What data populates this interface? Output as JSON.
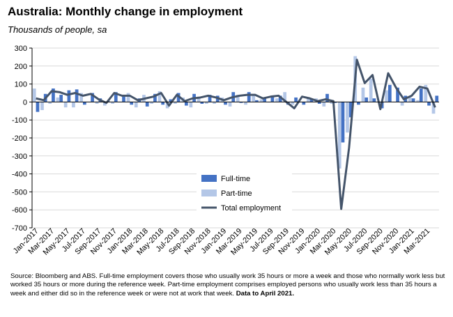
{
  "chart_data": {
    "type": "bar",
    "title": "Australia: Monthly change in employment",
    "subtitle": "Thousands of people, sa",
    "ylim": [
      -700,
      300
    ],
    "yticks": [
      300,
      200,
      100,
      0,
      -100,
      -200,
      -300,
      -400,
      -500,
      -600,
      -700
    ],
    "x_tick_labels": [
      "Jan-2017",
      "Mar-2017",
      "May-2017",
      "Jul-2017",
      "Sep-2017",
      "Nov-2017",
      "Jan-2018",
      "Mar-2018",
      "May-2018",
      "Jul-2018",
      "Sep-2018",
      "Nov-2018",
      "Jan-2019",
      "Mar-2019",
      "May-2019",
      "Jul-2019",
      "Sep-2019",
      "Nov-2019",
      "Jan-2020",
      "Mar-2020",
      "May-2020",
      "Jul-2020",
      "Sep-2020",
      "Nov-2020",
      "Jan-2021",
      "Mar-2021"
    ],
    "categories": [
      "Jan-2017",
      "Feb-2017",
      "Mar-2017",
      "Apr-2017",
      "May-2017",
      "Jun-2017",
      "Jul-2017",
      "Aug-2017",
      "Sep-2017",
      "Oct-2017",
      "Nov-2017",
      "Dec-2017",
      "Jan-2018",
      "Feb-2018",
      "Mar-2018",
      "Apr-2018",
      "May-2018",
      "Jun-2018",
      "Jul-2018",
      "Aug-2018",
      "Sep-2018",
      "Oct-2018",
      "Nov-2018",
      "Dec-2018",
      "Jan-2019",
      "Feb-2019",
      "Mar-2019",
      "Apr-2019",
      "May-2019",
      "Jun-2019",
      "Jul-2019",
      "Aug-2019",
      "Sep-2019",
      "Oct-2019",
      "Nov-2019",
      "Dec-2019",
      "Jan-2020",
      "Feb-2020",
      "Mar-2020",
      "Apr-2020",
      "May-2020",
      "Jun-2020",
      "Jul-2020",
      "Aug-2020",
      "Sep-2020",
      "Oct-2020",
      "Nov-2020",
      "Dec-2020",
      "Jan-2021",
      "Feb-2021",
      "Mar-2021",
      "Apr-2021"
    ],
    "series": [
      {
        "name": "Full-time",
        "kind": "bar",
        "color": "#4472c4",
        "values": [
          -55,
          45,
          75,
          40,
          65,
          70,
          -15,
          50,
          20,
          5,
          55,
          30,
          -15,
          20,
          -25,
          45,
          -15,
          15,
          50,
          -20,
          45,
          -10,
          40,
          35,
          -15,
          55,
          -5,
          55,
          10,
          25,
          30,
          35,
          -15,
          25,
          -15,
          15,
          -10,
          45,
          -5,
          -225,
          -85,
          -15,
          25,
          20,
          -35,
          95,
          80,
          35,
          20,
          75,
          -20,
          35
        ]
      },
      {
        "name": "Part-time",
        "kind": "bar",
        "color": "#b4c7e7",
        "values": [
          75,
          -45,
          -10,
          25,
          -30,
          -30,
          50,
          0,
          -10,
          -20,
          -10,
          0,
          50,
          -30,
          40,
          -10,
          60,
          -35,
          -10,
          25,
          -30,
          30,
          -10,
          -10,
          25,
          -25,
          40,
          -15,
          35,
          15,
          0,
          20,
          55,
          -15,
          0,
          20,
          20,
          -25,
          -10,
          -370,
          -170,
          255,
          80,
          130,
          0,
          65,
          0,
          -20,
          25,
          10,
          95,
          -65
        ]
      },
      {
        "name": "Total employment",
        "kind": "line",
        "color": "#44546a",
        "values": [
          20,
          10,
          60,
          55,
          40,
          50,
          35,
          45,
          15,
          -5,
          50,
          35,
          35,
          10,
          20,
          30,
          50,
          -20,
          40,
          5,
          20,
          25,
          35,
          25,
          10,
          25,
          35,
          40,
          40,
          20,
          30,
          35,
          0,
          -35,
          30,
          20,
          5,
          15,
          5,
          -595,
          -255,
          235,
          105,
          150,
          -40,
          160,
          80,
          15,
          35,
          85,
          75,
          -30
        ]
      }
    ],
    "legend": {
      "entries": [
        "Full-time",
        "Part-time",
        "Total employment"
      ],
      "placement": "center-bottom"
    }
  },
  "note": {
    "text": "Source: Bloomberg and ABS.  Full-time employment covers those who usually work 35 hours or more a week and those who normally work less but worked 35 hours or  more during the reference week.  Part-time employment comprises employed persons who usually work less than 35 hours a week and either did so in the reference week or were not at work that week.",
    "bold": "Data to April 2021."
  }
}
